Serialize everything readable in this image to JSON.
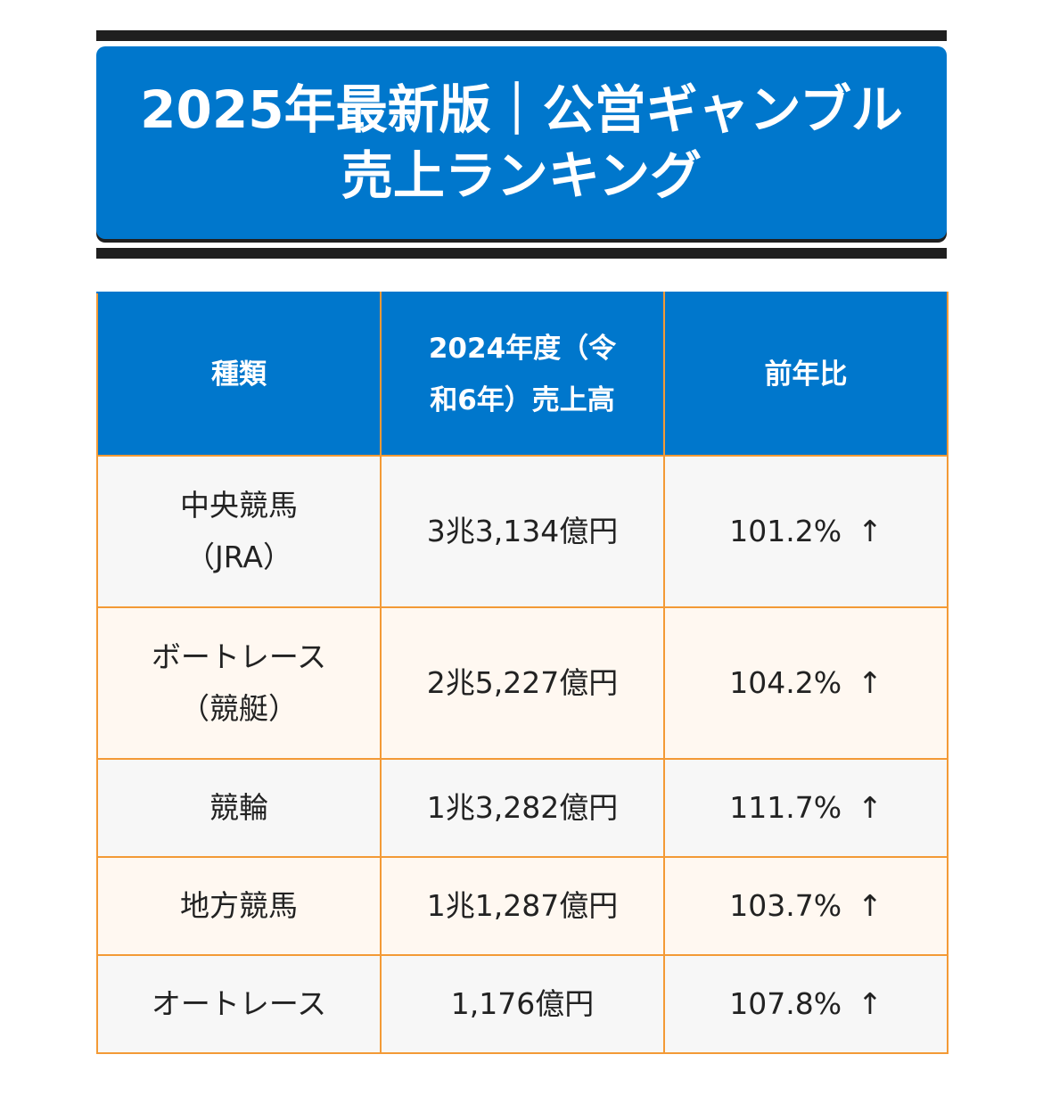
{
  "heading": {
    "line1": "2025年最新版｜公営ギャンブル",
    "line2": "売上ランキング"
  },
  "table": {
    "headers": {
      "type": "種類",
      "sales_line1": "2024年度（令",
      "sales_line2": "和6年）売上高",
      "yoy": "前年比"
    },
    "rows": [
      {
        "name_line1": "中央競馬",
        "name_line2": "（JRA）",
        "sales": "3兆3,134億円",
        "yoy": "101.2%",
        "arrow": "↑"
      },
      {
        "name_line1": "ボートレース",
        "name_line2": "（競艇）",
        "sales": "2兆5,227億円",
        "yoy": "104.2%",
        "arrow": "↑"
      },
      {
        "name_line1": "競輪",
        "name_line2": "",
        "sales": "1兆3,282億円",
        "yoy": "111.7%",
        "arrow": "↑"
      },
      {
        "name_line1": "地方競馬",
        "name_line2": "",
        "sales": "1兆1,287億円",
        "yoy": "103.7%",
        "arrow": "↑"
      },
      {
        "name_line1": "オートレース",
        "name_line2": "",
        "sales": "1,176億円",
        "yoy": "107.8%",
        "arrow": "↑"
      }
    ]
  },
  "colors": {
    "header_blue": "#0077cc",
    "border_orange": "#f39a36",
    "rule_dark": "#1f1f1f"
  }
}
